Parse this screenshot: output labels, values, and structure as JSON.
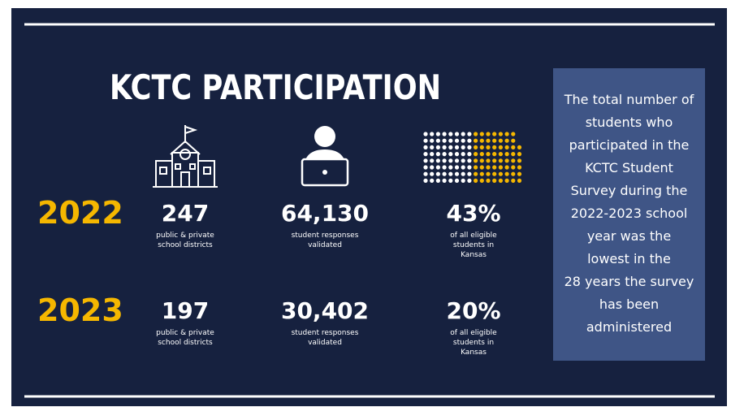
{
  "header": {
    "title": "KCTC PARTICIPATION"
  },
  "rows": [
    {
      "year": "2022",
      "stats": [
        {
          "value": "247",
          "label": [
            "public & private",
            "school districts"
          ]
        },
        {
          "value": "64,130",
          "label": [
            "student responses",
            "validated"
          ]
        },
        {
          "value": "43%",
          "label": [
            "of all eligible",
            "students in",
            "Kansas"
          ]
        }
      ]
    },
    {
      "year": "2023",
      "stats": [
        {
          "value": "197",
          "label": [
            "public & private",
            "school districts"
          ]
        },
        {
          "value": "30,402",
          "label": [
            "student responses",
            "validated"
          ]
        },
        {
          "value": "20%",
          "label": [
            "of all eligible",
            "students in",
            "Kansas"
          ]
        }
      ]
    }
  ],
  "note": {
    "lines": [
      "The total number of",
      "students who",
      "participated in the",
      "KCTC Student",
      "Survey during the",
      "2022-2023 school",
      "year was the",
      "lowest in the",
      "28 years the survey",
      "has been",
      "administered"
    ]
  }
}
